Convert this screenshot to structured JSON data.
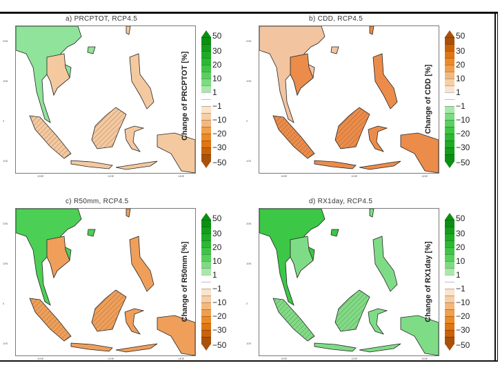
{
  "axes": {
    "lat_labels": [
      "20N",
      "10N",
      "0",
      "10S"
    ],
    "lon_labels": [
      "100E",
      "120E",
      "140E"
    ]
  },
  "colorbar_ticks": [
    "50",
    "30",
    "20",
    "10",
    "1",
    "−1",
    "−10",
    "−20",
    "−30",
    "−50"
  ],
  "colors": {
    "wet_scale": [
      "#0b8f12",
      "#149d1a",
      "#1fab25",
      "#2bb832",
      "#3fc545",
      "#58d05e",
      "#7ddb82",
      "#a8e8ab",
      "#ffffff",
      "#ffffff",
      "#fbe3cc",
      "#f7cfa5",
      "#f3b97c",
      "#ef9f4e",
      "#ec8a26",
      "#e07512",
      "#c9620a",
      "#a9510a"
    ]
  },
  "panels": [
    {
      "title": "a) PRCPTOT, RCP4.5",
      "cbar_label": "Change of PRCPTOT [%]",
      "reversed": false,
      "land": "#f4c9a0",
      "north": "#8fe39a"
    },
    {
      "title": "b) CDD, RCP4.5",
      "cbar_label": "Change of CDD [%]",
      "reversed": true,
      "land": "#ec8c4a",
      "north": "#f3c4a0"
    },
    {
      "title": "c) R50mm, RCP4.5",
      "cbar_label": "Change of R50mm [%]",
      "reversed": false,
      "land": "#ef9f5a",
      "north": "#4ccf55"
    },
    {
      "title": "d) RX1day, RCP4.5",
      "cbar_label": "Change of RX1day [%]",
      "reversed": false,
      "land": "#7fdc86",
      "north": "#3cc746"
    }
  ]
}
